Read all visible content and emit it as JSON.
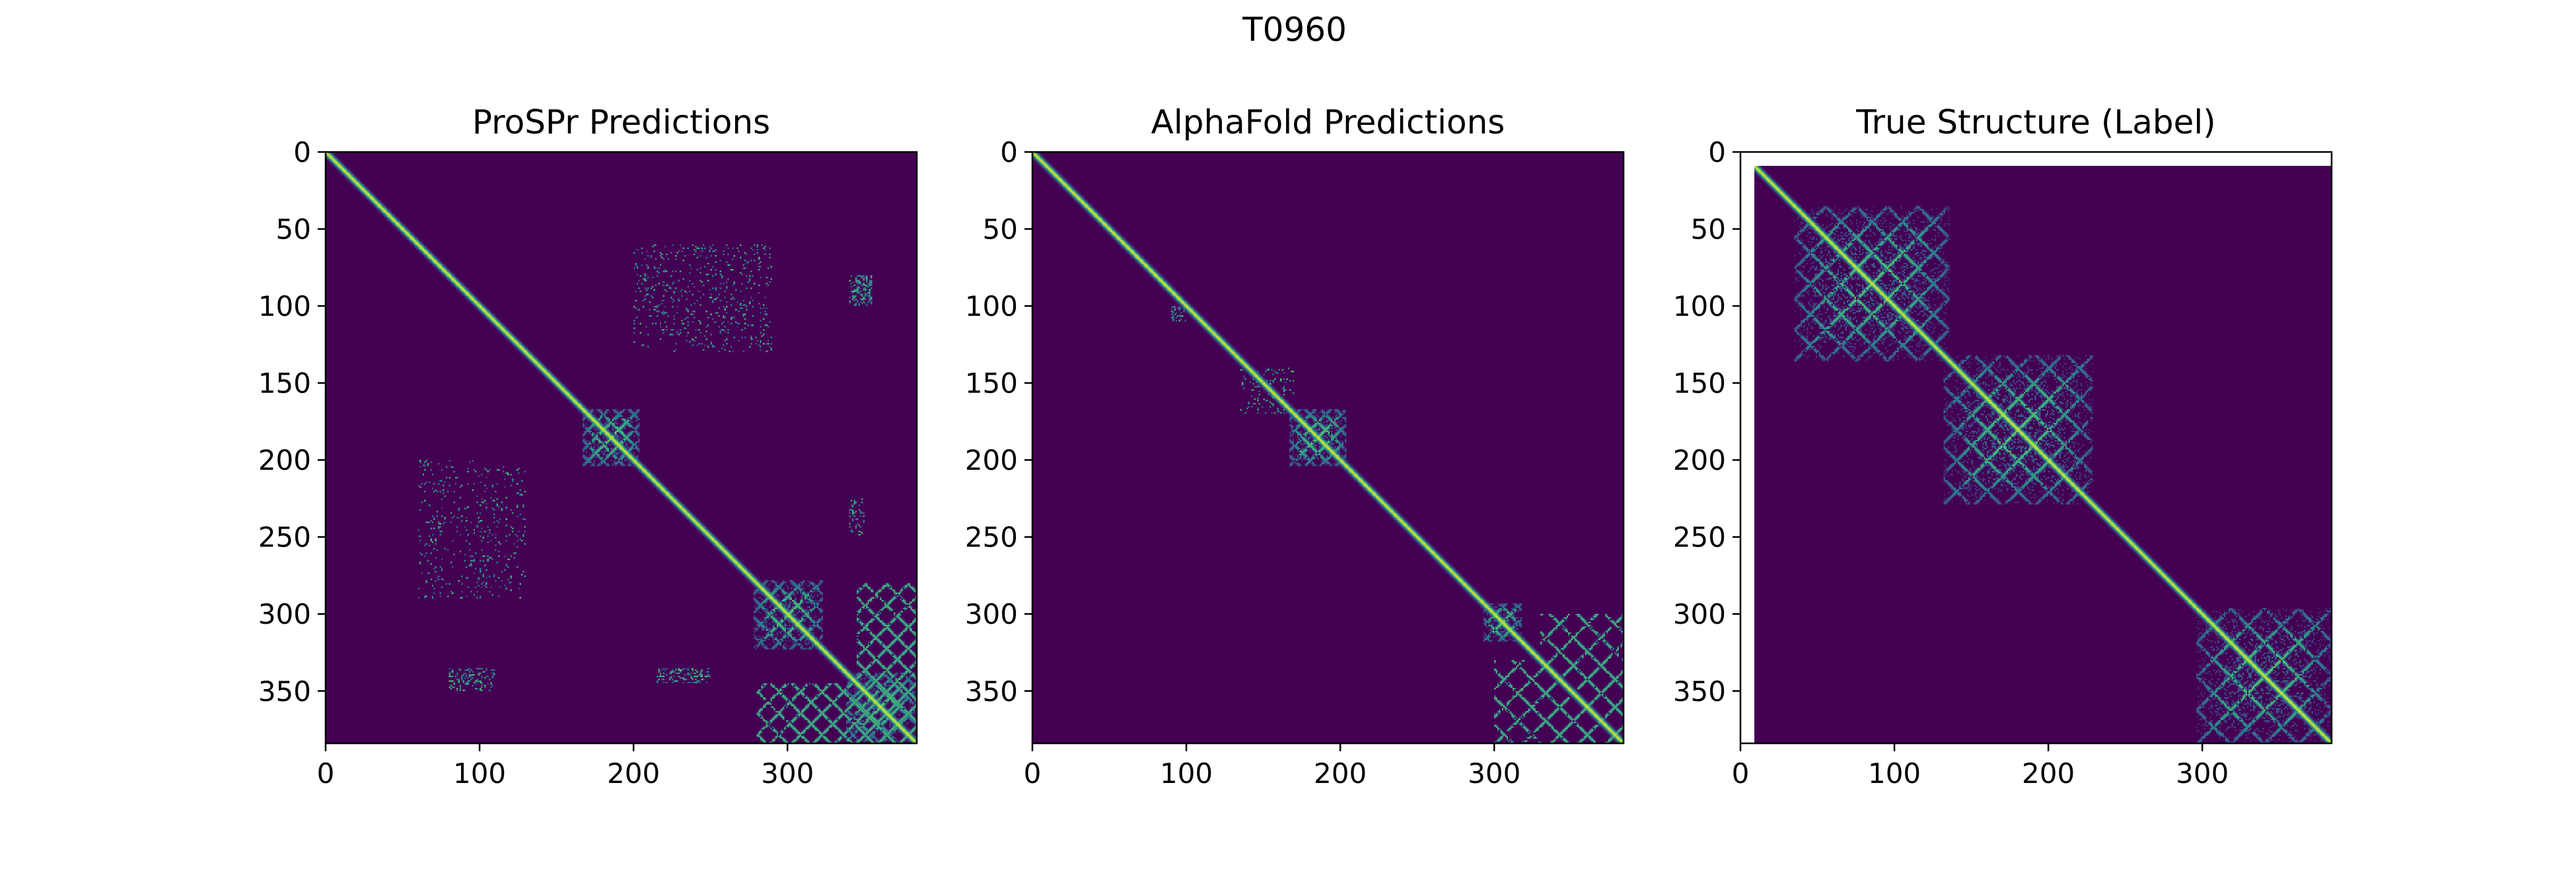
{
  "figure": {
    "suptitle": "T0960"
  },
  "colors": {
    "background": "#440154",
    "low": "#30678d",
    "mid": "#21918c",
    "high": "#5ec962",
    "peak": "#fde725",
    "unfilled": "#ffffff"
  },
  "chart_data": [
    {
      "type": "heatmap",
      "title": "ProSPr Predictions",
      "xlabel": "",
      "ylabel": "",
      "xlim": [
        0,
        384
      ],
      "ylim": [
        384,
        0
      ],
      "xticks": [
        "0",
        "100",
        "200",
        "300"
      ],
      "yticks": [
        "0",
        "50",
        "100",
        "150",
        "200",
        "250",
        "300",
        "350"
      ],
      "grid": false,
      "colormap": "viridis",
      "diagonal": {
        "from": 0,
        "to": 384,
        "value": 1.0
      },
      "domains": [
        {
          "center": 185,
          "half_width": 18,
          "spacing": 10
        },
        {
          "center": 300,
          "half_width": 22,
          "spacing": 12
        },
        {
          "center": 360,
          "half_width": 22,
          "spacing": 12
        }
      ],
      "off_diagonal_blocks": [
        {
          "x": [
            300,
            384
          ],
          "y": [
            345,
            384
          ],
          "spacing": 14
        },
        {
          "x": [
            345,
            384
          ],
          "y": [
            280,
            384
          ],
          "spacing": 14
        }
      ],
      "scatter_regions": [
        {
          "x": [
            200,
            290
          ],
          "y": [
            60,
            130
          ],
          "density": 0.08
        },
        {
          "x": [
            340,
            355
          ],
          "y": [
            80,
            100
          ],
          "density": 0.35
        },
        {
          "x": [
            60,
            130
          ],
          "y": [
            200,
            290
          ],
          "density": 0.06
        },
        {
          "x": [
            80,
            110
          ],
          "y": [
            335,
            350
          ],
          "density": 0.3
        },
        {
          "x": [
            215,
            250
          ],
          "y": [
            335,
            345
          ],
          "density": 0.3
        },
        {
          "x": [
            340,
            350
          ],
          "y": [
            225,
            250
          ],
          "density": 0.2
        }
      ]
    },
    {
      "type": "heatmap",
      "title": "AlphaFold Predictions",
      "xlabel": "",
      "ylabel": "",
      "xlim": [
        0,
        384
      ],
      "ylim": [
        384,
        0
      ],
      "xticks": [
        "0",
        "100",
        "200",
        "300"
      ],
      "yticks": [
        "0",
        "50",
        "100",
        "150",
        "200",
        "250",
        "300",
        "350"
      ],
      "grid": false,
      "colormap": "viridis",
      "diagonal": {
        "from": 0,
        "to": 384,
        "value": 1.0
      },
      "domains": [
        {
          "center": 185,
          "half_width": 18,
          "spacing": 10
        },
        {
          "center": 305,
          "half_width": 12,
          "spacing": 10
        }
      ],
      "off_diagonal_blocks": [
        {
          "x": [
            330,
            384
          ],
          "y": [
            300,
            384
          ],
          "spacing": 18
        }
      ],
      "scatter_regions": [
        {
          "x": [
            135,
            170
          ],
          "y": [
            140,
            170
          ],
          "density": 0.12
        },
        {
          "x": [
            90,
            100
          ],
          "y": [
            100,
            110
          ],
          "density": 0.4
        }
      ]
    },
    {
      "type": "heatmap",
      "title": "True Structure (Label)",
      "xlabel": "",
      "ylabel": "",
      "xlim": [
        0,
        384
      ],
      "ylim": [
        384,
        0
      ],
      "xticks": [
        "0",
        "100",
        "200",
        "300"
      ],
      "yticks": [
        "0",
        "50",
        "100",
        "150",
        "200",
        "250",
        "300",
        "350"
      ],
      "grid": false,
      "colormap": "viridis",
      "data_start": 9,
      "diagonal": {
        "from": 9,
        "to": 384,
        "value": 1.0
      },
      "domains": [
        {
          "center": 85,
          "half_width": 50,
          "spacing": 20
        },
        {
          "center": 180,
          "half_width": 48,
          "spacing": 20
        },
        {
          "center": 340,
          "half_width": 44,
          "spacing": 22
        }
      ],
      "off_diagonal_blocks": [],
      "scatter_regions": []
    }
  ]
}
